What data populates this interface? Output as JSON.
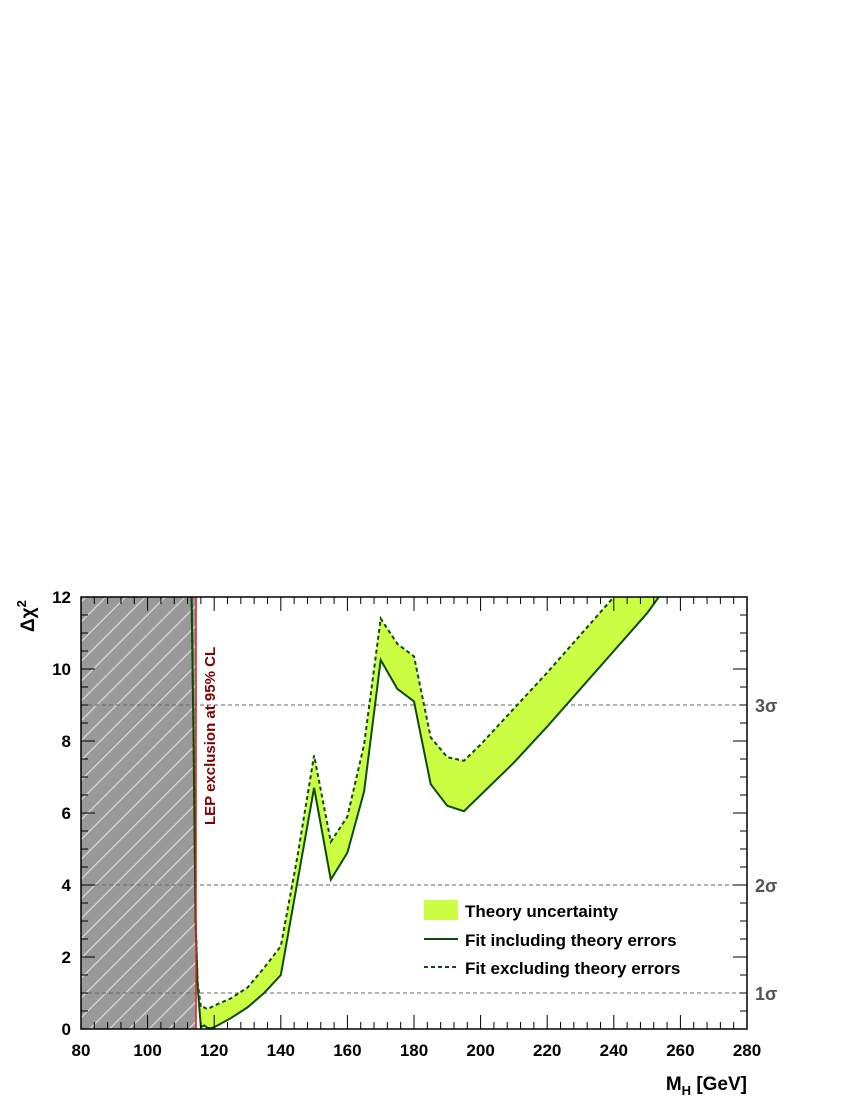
{
  "chart_data": {
    "type": "line",
    "xlabel": "M",
    "xlabel_sub": "H",
    "xlabel_unit": " [GeV]",
    "ylabel": "Δχ",
    "ylabel_sup": "2",
    "xlim": [
      80,
      280
    ],
    "ylim": [
      0,
      12
    ],
    "x_ticks": [
      80,
      100,
      120,
      140,
      160,
      180,
      200,
      220,
      240,
      260,
      280
    ],
    "y_ticks": [
      0,
      2,
      4,
      6,
      8,
      10,
      12
    ],
    "grid": false,
    "sigma_lines": [
      {
        "value": 1,
        "label": "1σ"
      },
      {
        "value": 4,
        "label": "2σ"
      },
      {
        "value": 9,
        "label": "3σ"
      }
    ],
    "excluded_region": {
      "x_from": 80,
      "x_to": 114.4,
      "label": "LEP exclusion at 95% CL"
    },
    "legend": {
      "position": "bottom-right",
      "entries": [
        "Theory uncertainty",
        "Fit including theory errors",
        "Fit excluding theory errors"
      ]
    },
    "series": [
      {
        "name": "Fit including theory errors",
        "style": "solid",
        "x": [
          113.2,
          113.8,
          114.4,
          115,
          116,
          117,
          118,
          119,
          120,
          125,
          130,
          135,
          140,
          145,
          150,
          155,
          160,
          165,
          170,
          175,
          180,
          185,
          190,
          195,
          200,
          210,
          220,
          230,
          240,
          250,
          253.5
        ],
        "y": [
          12,
          8,
          3,
          1.2,
          0.05,
          0.1,
          0.03,
          0.02,
          0.05,
          0.3,
          0.6,
          1.0,
          1.5,
          4.1,
          6.7,
          4.15,
          4.9,
          6.6,
          10.25,
          9.45,
          9.1,
          6.8,
          6.2,
          6.05,
          6.5,
          7.4,
          8.4,
          9.45,
          10.5,
          11.55,
          12
        ]
      },
      {
        "name": "Fit excluding theory errors",
        "style": "dashed",
        "x": [
          113.2,
          113.8,
          114.4,
          115,
          116,
          117,
          118,
          119,
          120,
          125,
          130,
          135,
          140,
          145,
          150,
          155,
          160,
          165,
          170,
          175,
          180,
          185,
          190,
          195,
          200,
          210,
          220,
          230,
          240
        ],
        "y": [
          12,
          8,
          3,
          1.3,
          0.6,
          0.6,
          0.55,
          0.6,
          0.65,
          0.85,
          1.15,
          1.7,
          2.3,
          4.8,
          7.6,
          5.2,
          5.9,
          7.9,
          11.4,
          10.7,
          10.35,
          8.1,
          7.55,
          7.45,
          7.9,
          8.9,
          9.9,
          10.95,
          12
        ]
      }
    ]
  }
}
